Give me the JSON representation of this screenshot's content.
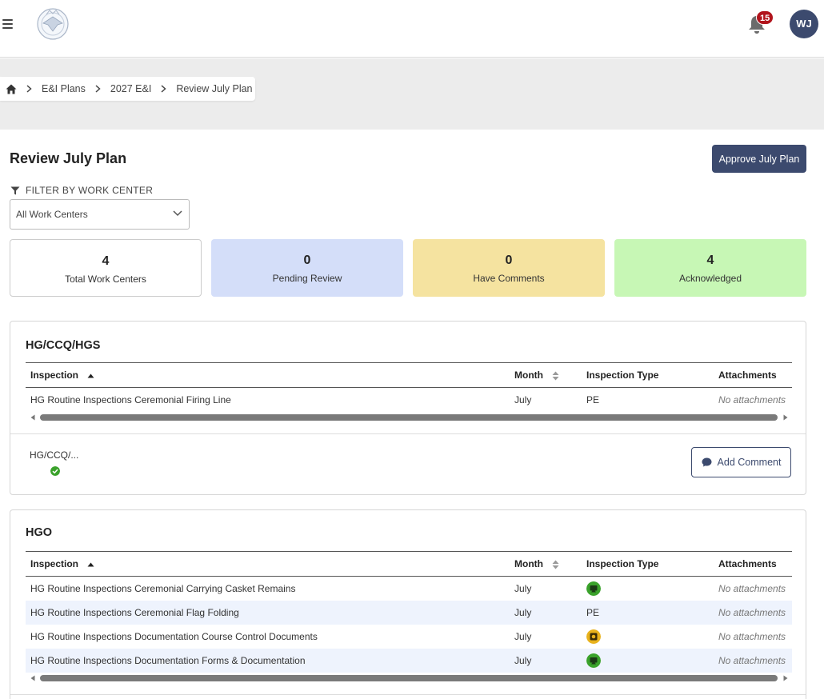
{
  "header": {
    "notification_count": "15",
    "user_initials": "WJ"
  },
  "breadcrumb": {
    "items": [
      "E&I Plans",
      "2027 E&I"
    ],
    "current": "Review July Plan"
  },
  "page": {
    "title": "Review July Plan",
    "approve_label": "Approve July Plan"
  },
  "filter": {
    "label": "FILTER BY WORK CENTER",
    "selected": "All Work Centers"
  },
  "stats": [
    {
      "value": "4",
      "label": "Total Work Centers",
      "color": "#ffffff"
    },
    {
      "value": "0",
      "label": "Pending Review",
      "color": "#d4def9"
    },
    {
      "value": "0",
      "label": "Have Comments",
      "color": "#f5e3a0"
    },
    {
      "value": "4",
      "label": "Acknowledged",
      "color": "#c7f7b5"
    }
  ],
  "columns": {
    "inspection": "Inspection",
    "month": "Month",
    "type": "Inspection Type",
    "attachments": "Attachments"
  },
  "work_centers": [
    {
      "title": "HG/CCQ/HGS",
      "rows": [
        {
          "inspection": "HG Routine Inspections Ceremonial Firing Line",
          "month": "July",
          "type": "PE",
          "attachments": "No attachments"
        }
      ],
      "footer_name": "HG/CCQ/...",
      "comment_label": "Add Comment",
      "status": "acknowledged"
    },
    {
      "title": "HGO",
      "rows": [
        {
          "inspection": "HG Routine Inspections Ceremonial Carrying Casket Remains",
          "month": "July",
          "type_icon": "green-screen-icon",
          "attachments": "No attachments"
        },
        {
          "inspection": "HG Routine Inspections Ceremonial Flag Folding",
          "month": "July",
          "type": "PE",
          "attachments": "No attachments"
        },
        {
          "inspection": "HG Routine Inspections Documentation Course Control Documents",
          "month": "July",
          "type_icon": "yellow-camera-icon",
          "attachments": "No attachments"
        },
        {
          "inspection": "HG Routine Inspections Documentation Forms & Documentation",
          "month": "July",
          "type_icon": "green-screen-icon",
          "attachments": "No attachments"
        }
      ]
    }
  ],
  "colors": {
    "primary": "#3c4a6e",
    "badge": "#b1141c",
    "check": "#3aa22b",
    "icon_green": "#3aa22b",
    "icon_yellow": "#e8b21c"
  }
}
